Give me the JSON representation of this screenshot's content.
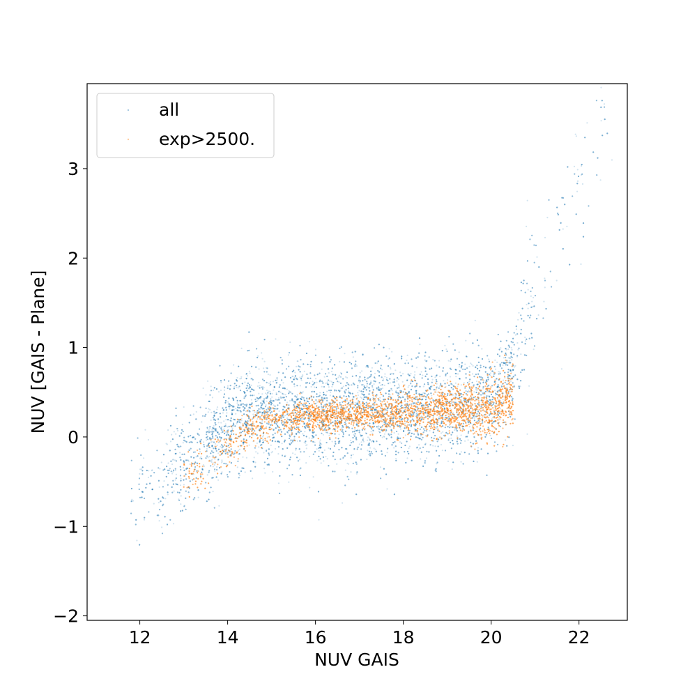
{
  "chart_data": {
    "type": "scatter",
    "title": "",
    "xlabel": "NUV GAIS",
    "ylabel": "NUV [GAIS - Plane]",
    "xlim": [
      10.8,
      23.1
    ],
    "ylim": [
      -2.05,
      3.95
    ],
    "xticks": [
      12,
      14,
      16,
      18,
      20,
      22
    ],
    "yticks": [
      -2,
      -1,
      0,
      1,
      2,
      3
    ],
    "xtick_labels": [
      "12",
      "14",
      "16",
      "18",
      "20",
      "22"
    ],
    "ytick_labels": [
      "−2",
      "−1",
      "0",
      "1",
      "2",
      "3"
    ],
    "grid": false,
    "legend_position": "top-left",
    "series": [
      {
        "name": "all",
        "color": "#1f77b4",
        "marker": "small dot",
        "opacity": 0.2,
        "trend": {
          "x": [
            12.0,
            12.5,
            13.0,
            13.5,
            14.0,
            14.5,
            15.0,
            16.0,
            17.0,
            18.0,
            19.0,
            19.5,
            20.0,
            20.5,
            21.0,
            21.5,
            22.0,
            22.5
          ],
          "y": [
            -0.6,
            -0.45,
            -0.3,
            -0.05,
            0.15,
            0.25,
            0.28,
            0.28,
            0.28,
            0.3,
            0.35,
            0.38,
            0.4,
            0.7,
            1.5,
            2.2,
            2.8,
            3.3
          ]
        }
      },
      {
        "name": "exp>2500.",
        "color": "#ff7f0e",
        "marker": "small dot",
        "opacity": 0.3,
        "trend": {
          "x": [
            13.0,
            13.5,
            14.0,
            14.5,
            15.0,
            16.0,
            17.0,
            18.0,
            19.0,
            19.5,
            20.0,
            20.4
          ],
          "y": [
            -0.45,
            -0.3,
            -0.1,
            0.1,
            0.18,
            0.23,
            0.25,
            0.27,
            0.28,
            0.3,
            0.32,
            0.45
          ]
        }
      }
    ]
  }
}
